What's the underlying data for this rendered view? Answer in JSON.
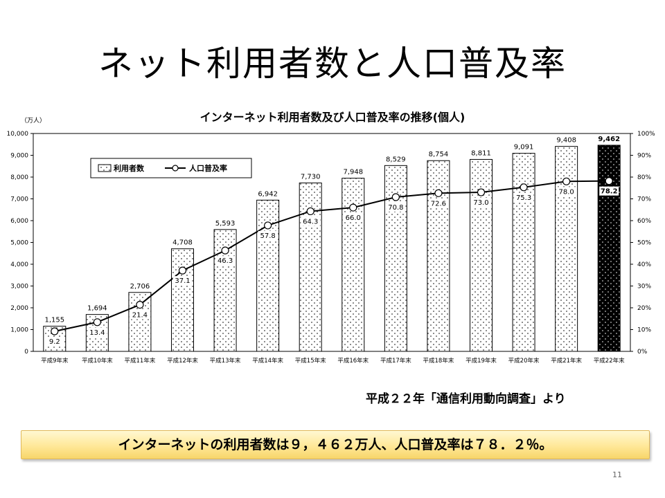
{
  "slide": {
    "title": "ネット利用者数と人口普及率",
    "source": "平成２２年「通信利用動向調査」より",
    "summary": "インターネットの利用者数は９，４６２万人、人口普及率は７８．２％。",
    "page_number": "11"
  },
  "chart_data": {
    "type": "bar",
    "title": "インターネット利用者数及び人口普及率の推移(個人)",
    "y_unit_label": "（万人）",
    "categories": [
      "平成9年末",
      "平成10年末",
      "平成11年末",
      "平成12年末",
      "平成13年末",
      "平成14年末",
      "平成15年末",
      "平成16年末",
      "平成17年末",
      "平成18年末",
      "平成19年末",
      "平成20年末",
      "平成21年末",
      "平成22年末"
    ],
    "ylim": [
      0,
      10000
    ],
    "y2lim": [
      0,
      100
    ],
    "y_ticks": [
      "0",
      "1,000",
      "2,000",
      "3,000",
      "4,000",
      "5,000",
      "6,000",
      "7,000",
      "8,000",
      "9,000",
      "10,000"
    ],
    "y2_ticks": [
      "0%",
      "10%",
      "20%",
      "30%",
      "40%",
      "50%",
      "60%",
      "70%",
      "80%",
      "90%",
      "100%"
    ],
    "legend": {
      "position": "top-left"
    },
    "series": [
      {
        "name": "利用者数",
        "type": "bar",
        "values": [
          1155,
          1694,
          2706,
          4708,
          5593,
          6942,
          7730,
          7948,
          8529,
          8754,
          8811,
          9091,
          9408,
          9462
        ],
        "labels": [
          "1,155",
          "1,694",
          "2,706",
          "4,708",
          "5,593",
          "6,942",
          "7,730",
          "7,948",
          "8,529",
          "8,754",
          "8,811",
          "9,091",
          "9,408",
          "9,462"
        ],
        "highlight_index": 13
      },
      {
        "name": "人口普及率",
        "type": "line",
        "axis": "right",
        "values": [
          9.2,
          13.4,
          21.4,
          37.1,
          46.3,
          57.8,
          64.3,
          66.0,
          70.8,
          72.6,
          73.0,
          75.3,
          78.0,
          78.2
        ],
        "labels": [
          "9.2",
          "13.4",
          "21.4",
          "37.1",
          "46.3",
          "57.8",
          "64.3",
          "66.0",
          "70.8",
          "72.6",
          "73.0",
          "75.3",
          "78.0",
          "78.2"
        ]
      }
    ]
  }
}
